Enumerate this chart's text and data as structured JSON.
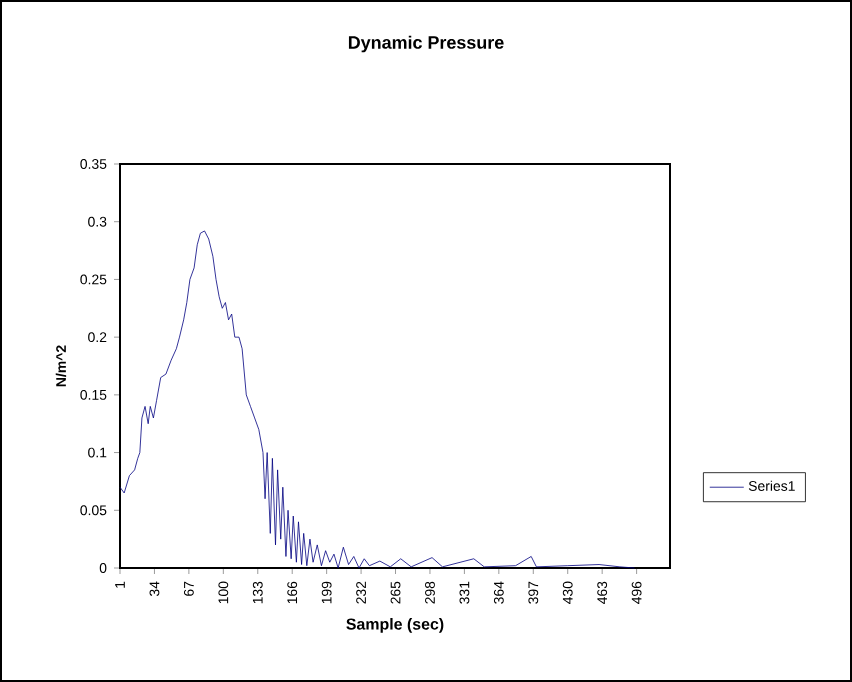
{
  "chart_data": {
    "type": "line",
    "title": "Dynamic Pressure",
    "xlabel": "Sample (sec)",
    "ylabel": "N/m^2",
    "xlim": [
      1,
      528
    ],
    "xticks": [
      1,
      34,
      67,
      100,
      133,
      166,
      199,
      232,
      265,
      298,
      331,
      364,
      397,
      430,
      463,
      496
    ],
    "ylim": [
      0,
      0.35
    ],
    "yticks": [
      0,
      0.05,
      0.1,
      0.15,
      0.2,
      0.25,
      0.3,
      0.35
    ],
    "legend": "right",
    "grid": false,
    "marker": "none",
    "series": [
      {
        "name": "Series1",
        "color": "#000080",
        "x": [
          1,
          5,
          10,
          15,
          18,
          20,
          22,
          25,
          28,
          30,
          33,
          36,
          40,
          45,
          50,
          55,
          58,
          62,
          65,
          68,
          72,
          75,
          78,
          82,
          86,
          90,
          93,
          96,
          99,
          102,
          105,
          108,
          111,
          115,
          118,
          122,
          126,
          130,
          134,
          138,
          140,
          142,
          145,
          147,
          150,
          152,
          155,
          157,
          160,
          162,
          165,
          167,
          170,
          172,
          175,
          177,
          180,
          183,
          186,
          190,
          194,
          198,
          202,
          206,
          210,
          215,
          220,
          225,
          230,
          235,
          240,
          250,
          260,
          270,
          280,
          300,
          310,
          340,
          350,
          380,
          395,
          400,
          430,
          460,
          480,
          494
        ],
        "values": [
          0.07,
          0.065,
          0.08,
          0.085,
          0.095,
          0.1,
          0.13,
          0.14,
          0.125,
          0.14,
          0.13,
          0.145,
          0.165,
          0.168,
          0.18,
          0.19,
          0.2,
          0.215,
          0.23,
          0.25,
          0.26,
          0.28,
          0.29,
          0.292,
          0.285,
          0.27,
          0.25,
          0.235,
          0.225,
          0.23,
          0.215,
          0.22,
          0.2,
          0.2,
          0.19,
          0.15,
          0.14,
          0.13,
          0.12,
          0.1,
          0.06,
          0.1,
          0.03,
          0.095,
          0.02,
          0.085,
          0.025,
          0.07,
          0.01,
          0.05,
          0.008,
          0.045,
          0.005,
          0.04,
          0.003,
          0.03,
          0.002,
          0.025,
          0.005,
          0.02,
          0.002,
          0.015,
          0.005,
          0.012,
          0.0,
          0.018,
          0.003,
          0.01,
          0.0,
          0.008,
          0.002,
          0.006,
          0.001,
          0.008,
          0.001,
          0.009,
          0.001,
          0.008,
          0.001,
          0.002,
          0.01,
          0.001,
          0.002,
          0.003,
          0.001,
          0.0
        ]
      }
    ]
  }
}
